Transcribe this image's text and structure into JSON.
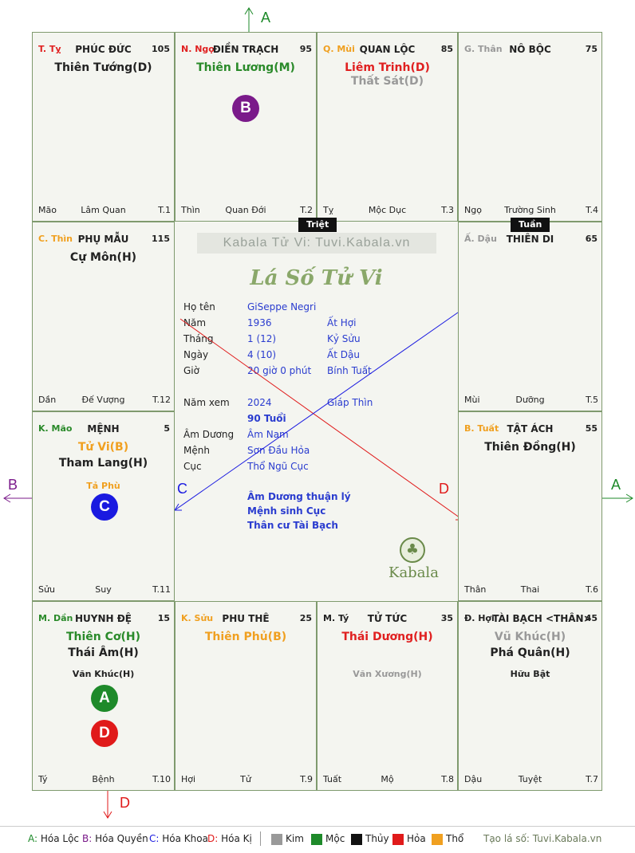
{
  "watermark": "Kabala Tử Vi: Tuvi.Kabala.vn",
  "chart_title": "Lá Số Tử Vi",
  "brand": "Kabala",
  "palaces": [
    {
      "id": "ty",
      "code": "T. Tỵ",
      "code_color": "#e02020",
      "name": "PHÚC ĐỨC",
      "score": "105",
      "stars": [
        {
          "t": "Thiên Tướng(D)",
          "c": "#222"
        }
      ],
      "minors": [],
      "b1": "Mão",
      "b2": "Lâm Quan",
      "b3": "T.1"
    },
    {
      "id": "ngo",
      "code": "N. Ngọ",
      "code_color": "#e02020",
      "name": "ĐIỀN TRẠCH",
      "score": "95",
      "stars": [
        {
          "t": "Thiên Lương(M)",
          "c": "#2a8a2a"
        }
      ],
      "minors": [],
      "b1": "Thìn",
      "b2": "Quan Đới",
      "b3": "T.2"
    },
    {
      "id": "mui",
      "code": "Q. Mùi",
      "code_color": "#f0a020",
      "name": "QUAN LỘC",
      "score": "85",
      "stars": [
        {
          "t": "Liêm Trinh(D)",
          "c": "#e02020"
        },
        {
          "t": "Thất Sát(D)",
          "c": "#999"
        }
      ],
      "minors": [],
      "b1": "Tỵ",
      "b2": "Mộc Dục",
      "b3": "T.3"
    },
    {
      "id": "than",
      "code": "G. Thân",
      "code_color": "#999",
      "name": "NÔ BỘC",
      "score": "75",
      "stars": [],
      "minors": [],
      "b1": "Ngọ",
      "b2": "Trường Sinh",
      "b3": "T.4"
    },
    {
      "id": "thin",
      "code": "C. Thìn",
      "code_color": "#f0a020",
      "name": "PHỤ MẪU",
      "score": "115",
      "stars": [
        {
          "t": "Cự Môn(H)",
          "c": "#222"
        }
      ],
      "minors": [],
      "b1": "Dần",
      "b2": "Đế Vượng",
      "b3": "T.12"
    },
    {
      "id": "dau",
      "code": "Ấ. Dậu",
      "code_color": "#999",
      "name": "THIÊN DI",
      "score": "65",
      "stars": [],
      "minors": [],
      "b1": "Mùi",
      "b2": "Dưỡng",
      "b3": "T.5"
    },
    {
      "id": "mao",
      "code": "K. Mão",
      "code_color": "#2a8a2a",
      "name": "MỆNH",
      "score": "5",
      "stars": [
        {
          "t": "Tử Vi(B)",
          "c": "#f0a020"
        },
        {
          "t": "Tham Lang(H)",
          "c": "#222"
        }
      ],
      "minors": [
        {
          "t": "Tả Phù",
          "c": "#f0a020"
        }
      ],
      "b1": "Sửu",
      "b2": "Suy",
      "b3": "T.11"
    },
    {
      "id": "tuat",
      "code": "B. Tuất",
      "code_color": "#f0a020",
      "name": "TẬT ÁCH",
      "score": "55",
      "stars": [
        {
          "t": "Thiên Đồng(H)",
          "c": "#222"
        }
      ],
      "minors": [],
      "b1": "Thân",
      "b2": "Thai",
      "b3": "T.6"
    },
    {
      "id": "dan",
      "code": "M. Dần",
      "code_color": "#2a8a2a",
      "name": "HUYNH ĐỆ",
      "score": "15",
      "stars": [
        {
          "t": "Thiên Cơ(H)",
          "c": "#2a8a2a"
        },
        {
          "t": "Thái Âm(H)",
          "c": "#222"
        }
      ],
      "minors": [
        {
          "t": "Văn Khúc(H)",
          "c": "#222"
        }
      ],
      "b1": "Tý",
      "b2": "Bệnh",
      "b3": "T.10"
    },
    {
      "id": "suu",
      "code": "K. Sửu",
      "code_color": "#f0a020",
      "name": "PHU THÊ",
      "score": "25",
      "stars": [
        {
          "t": "Thiên Phủ(B)",
          "c": "#f0a020"
        }
      ],
      "minors": [],
      "b1": "Hợi",
      "b2": "Tử",
      "b3": "T.9"
    },
    {
      "id": "ti",
      "code": "M. Tý",
      "code_color": "#222",
      "name": "TỬ TỨC",
      "score": "35",
      "stars": [
        {
          "t": "Thái Dương(H)",
          "c": "#e02020"
        }
      ],
      "minors": [
        {
          "t": "Văn Xương(H)",
          "c": "#999"
        }
      ],
      "b1": "Tuất",
      "b2": "Mộ",
      "b3": "T.8"
    },
    {
      "id": "hoi",
      "code": "Đ. Hợi",
      "code_color": "#222",
      "name": "TÀI BẠCH <THÂN>",
      "score": "45",
      "stars": [
        {
          "t": "Vũ Khúc(H)",
          "c": "#999"
        },
        {
          "t": "Phá Quân(H)",
          "c": "#222"
        }
      ],
      "minors": [
        {
          "t": "Hữu Bật",
          "c": "#222"
        }
      ],
      "b1": "Dậu",
      "b2": "Tuyệt",
      "b3": "T.7"
    }
  ],
  "tags": {
    "triet": "Triệt",
    "tuan": "Tuần"
  },
  "info": [
    {
      "label": "Họ tên",
      "v1": "GiSeppe Negri",
      "v2": ""
    },
    {
      "label": "Năm",
      "v1": "1936",
      "v2": "Ất Hợi"
    },
    {
      "label": "Tháng",
      "v1": "1  (12)",
      "v2": "Kỷ Sửu"
    },
    {
      "label": "Ngày",
      "v1": "4  (10)",
      "v2": "Ất Dậu"
    },
    {
      "label": "Giờ",
      "v1": "20 giờ 0 phút",
      "v2": "Bính Tuất"
    }
  ],
  "nam_xem": {
    "label": "Năm xem",
    "v1": "2024",
    "v2": "Giáp Thìn",
    "age": "90 Tuổi"
  },
  "info2": [
    {
      "label": "Âm Dương",
      "v1": "Âm Nam"
    },
    {
      "label": "Mệnh",
      "v1": "Sơn Đầu Hỏa"
    },
    {
      "label": "Cục",
      "v1": "Thổ Ngũ Cục"
    }
  ],
  "notes": [
    "Âm Dương thuận lý",
    "Mệnh sinh Cục",
    "Thân cư Tài Bạch"
  ],
  "markers": {
    "A": "A",
    "B": "B",
    "C": "C",
    "D": "D"
  },
  "marker_colors": {
    "A": "#1e8a2a",
    "B": "#7a1a8a",
    "C": "#1a1ae0",
    "D": "#e01a1a"
  },
  "legend": {
    "hoa": [
      {
        "k": "A",
        "t": "Hóa Lộc",
        "c": "#1e8a2a"
      },
      {
        "k": "B",
        "t": "Hóa Quyền",
        "c": "#7a1a8a"
      },
      {
        "k": "C",
        "t": "Hóa Khoa",
        "c": "#1a1ae0"
      },
      {
        "k": "D",
        "t": "Hóa Kị",
        "c": "#e01a1a"
      }
    ],
    "elements": [
      {
        "t": "Kim",
        "c": "#999999"
      },
      {
        "t": "Mộc",
        "c": "#1e8a2a"
      },
      {
        "t": "Thủy",
        "c": "#111111"
      },
      {
        "t": "Hỏa",
        "c": "#e01a1a"
      },
      {
        "t": "Thổ",
        "c": "#f0a020"
      }
    ],
    "credit": "Tạo lá số: Tuvi.Kabala.vn"
  }
}
